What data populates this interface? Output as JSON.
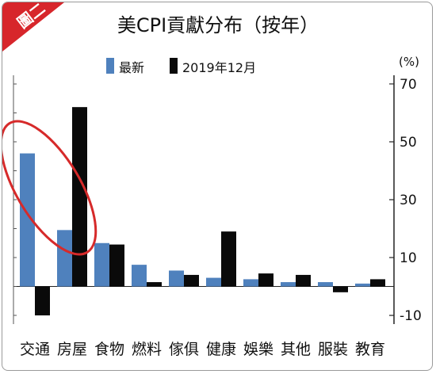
{
  "badge": "圖二",
  "chart_data": {
    "type": "bar",
    "title": "美CPI貢獻分布（按年）",
    "unit": "(%)",
    "categories": [
      "交通",
      "房屋",
      "食物",
      "燃料",
      "傢俱",
      "健康",
      "娛樂",
      "其他",
      "服裝",
      "教育"
    ],
    "series": [
      {
        "name": "最新",
        "color": "#4f81bd",
        "values": [
          46,
          19.5,
          15,
          7.5,
          5.5,
          3,
          2.5,
          1.5,
          1.5,
          1
        ]
      },
      {
        "name": "2019年12月",
        "color": "#0a0a0a",
        "values": [
          -10,
          62,
          14.5,
          1.5,
          4,
          19,
          4.5,
          4,
          -2,
          2.5
        ]
      }
    ],
    "y_ticks": [
      70,
      50,
      30,
      10,
      -10
    ],
    "ylim": [
      -13,
      73
    ],
    "grid": false,
    "legend_position": "top-left",
    "y_axis_side": "right",
    "annotation": {
      "shape": "ellipse",
      "color": "#d62a2a",
      "target": [
        "交通",
        "房屋"
      ]
    }
  }
}
